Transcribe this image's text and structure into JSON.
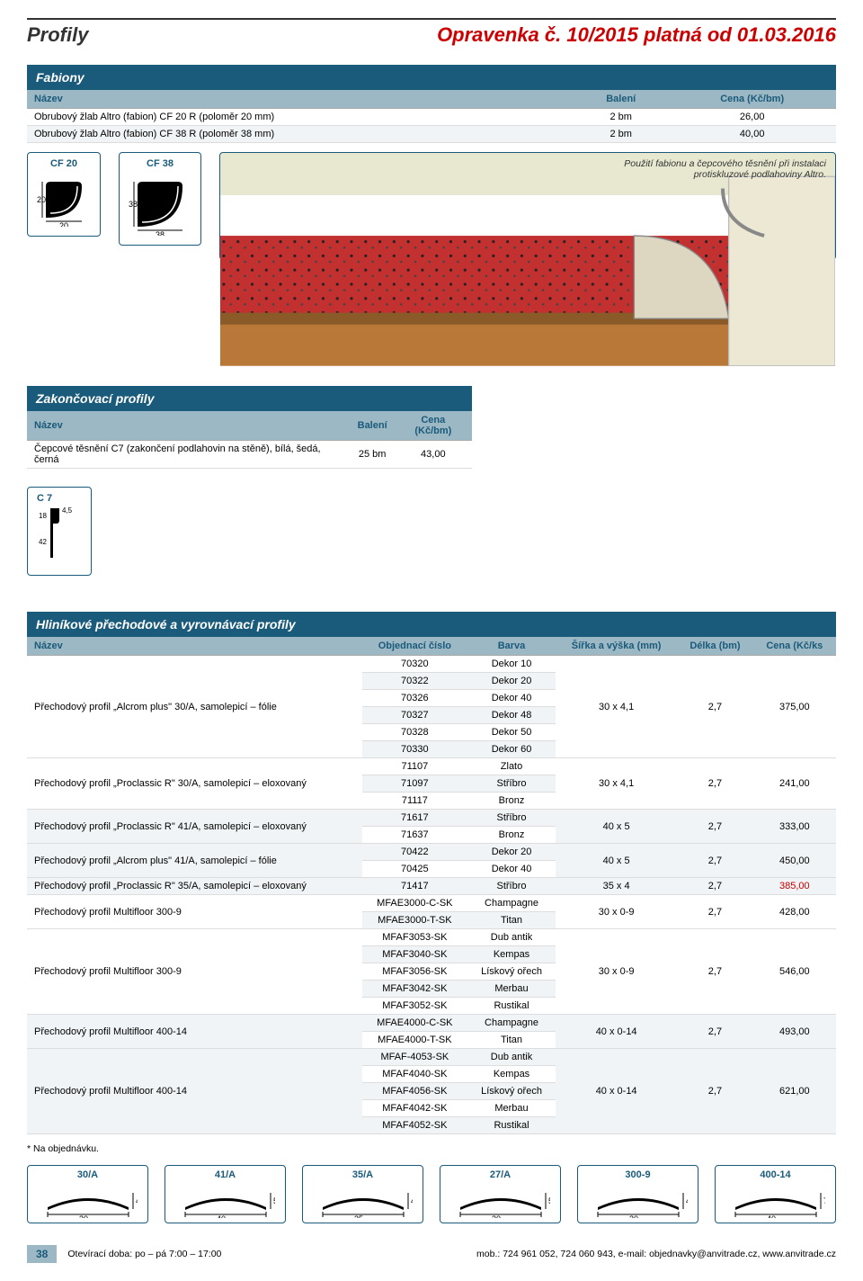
{
  "header": {
    "left": "Profily",
    "right": "Opravenka č. 10/2015  platná od 01.03.2016"
  },
  "fabiony": {
    "title": "Fabiony",
    "columns": [
      "Název",
      "Balení",
      "Cena (Kč/bm)"
    ],
    "rows": [
      [
        "Obrubový žlab Altro (fabion) CF 20 R (poloměr 20 mm)",
        "2 bm",
        "26,00"
      ],
      [
        "Obrubový žlab Altro (fabion) CF 38 R (poloměr 38 mm)",
        "2 bm",
        "40,00"
      ]
    ],
    "cf20": {
      "label": "CF 20",
      "w": "20",
      "h": "20"
    },
    "cf38": {
      "label": "CF 38",
      "w": "38",
      "h": "38"
    },
    "illus_text": "Použití fabionu a čepcového těsnění při instalaci protiskluzové podlahoviny Altro."
  },
  "zakon": {
    "title": "Zakončovací profily",
    "columns": [
      "Název",
      "Balení",
      "Cena (Kč/bm)"
    ],
    "rows": [
      [
        "Čepcové těsnění C7 (zakončení podlahovin na stěně), bílá, šedá, černá",
        "25 bm",
        "43,00"
      ]
    ],
    "c7": {
      "label": "C 7",
      "dim1": "4,5",
      "dim2": "18",
      "dim3": "42"
    }
  },
  "hlinik": {
    "title": "Hliníkové přechodové a vyrovnávací profily",
    "columns": [
      "Název",
      "Objednací číslo",
      "Barva",
      "Šířka a výška (mm)",
      "Délka (bm)",
      "Cena (Kč/ks"
    ],
    "rows": [
      {
        "span": 6,
        "name": "Přechodový profil „Alcrom plus\" 30/A, samolepicí – fólie",
        "items": [
          [
            "70320",
            "Dekor 10"
          ],
          [
            "70322",
            "Dekor 20"
          ],
          [
            "70326",
            "Dekor 40"
          ],
          [
            "70327",
            "Dekor 48"
          ],
          [
            "70328",
            "Dekor 50"
          ],
          [
            "70330",
            "Dekor 60"
          ]
        ],
        "dim": "30 x 4,1",
        "len": "2,7",
        "price": "375,00"
      },
      {
        "span": 3,
        "name": "Přechodový profil „Proclassic R\" 30/A, samolepicí – eloxovaný",
        "items": [
          [
            "71107",
            "Zlato"
          ],
          [
            "71097",
            "Stříbro"
          ],
          [
            "71117",
            "Bronz"
          ]
        ],
        "dim": "30 x 4,1",
        "len": "2,7",
        "price": "241,00"
      },
      {
        "span": 2,
        "name": "Přechodový profil „Proclassic R\" 41/A, samolepicí – eloxovaný",
        "items": [
          [
            "71617",
            "Stříbro"
          ],
          [
            "71637",
            "Bronz"
          ]
        ],
        "dim": "40 x 5",
        "len": "2,7",
        "price": "333,00"
      },
      {
        "span": 2,
        "name": "Přechodový profil „Alcrom plus\" 41/A, samolepicí – fólie",
        "items": [
          [
            "70422",
            "Dekor 20"
          ],
          [
            "70425",
            "Dekor 40"
          ]
        ],
        "dim": "40 x 5",
        "len": "2,7",
        "price": "450,00"
      },
      {
        "span": 1,
        "name": "Přechodový profil „Proclassic R\" 35/A, samolepicí – eloxovaný",
        "items": [
          [
            "71417",
            "Stříbro"
          ]
        ],
        "dim": "35 x 4",
        "len": "2,7",
        "price": "385,00",
        "price_red": true
      },
      {
        "span": 2,
        "name": "Přechodový profil Multifloor 300-9",
        "items": [
          [
            "MFAE3000-C-SK",
            "Champagne"
          ],
          [
            "MFAE3000-T-SK",
            "Titan"
          ]
        ],
        "dim": "30 x 0-9",
        "len": "2,7",
        "price": "428,00"
      },
      {
        "span": 5,
        "name": "Přechodový profil Multifloor 300-9",
        "items": [
          [
            "MFAF3053-SK",
            "Dub antik"
          ],
          [
            "MFAF3040-SK",
            "Kempas"
          ],
          [
            "MFAF3056-SK",
            "Lískový ořech"
          ],
          [
            "MFAF3042-SK",
            "Merbau"
          ],
          [
            "MFAF3052-SK",
            "Rustikal"
          ]
        ],
        "dim": "30 x 0-9",
        "len": "2,7",
        "price": "546,00"
      },
      {
        "span": 2,
        "name": "Přechodový profil Multifloor 400-14",
        "items": [
          [
            "MFAE4000-C-SK",
            "Champagne"
          ],
          [
            "MFAE4000-T-SK",
            "Titan"
          ]
        ],
        "dim": "40 x 0-14",
        "len": "2,7",
        "price": "493,00"
      },
      {
        "span": 5,
        "name": "Přechodový profil Multifloor 400-14",
        "items": [
          [
            "MFAF-4053-SK",
            "Dub antik"
          ],
          [
            "MFAF4040-SK",
            "Kempas"
          ],
          [
            "MFAF4056-SK",
            "Lískový ořech"
          ],
          [
            "MFAF4042-SK",
            "Merbau"
          ],
          [
            "MFAF4052-SK",
            "Rustikal"
          ]
        ],
        "dim": "40 x 0-14",
        "len": "2,7",
        "price": "621,00"
      }
    ],
    "note": "* Na objednávku."
  },
  "bottom_profiles": [
    {
      "label": "30/A",
      "w": "30",
      "h": "4,1"
    },
    {
      "label": "41/A",
      "w": "40",
      "h": "5"
    },
    {
      "label": "35/A",
      "w": "35",
      "h": "4"
    },
    {
      "label": "27/A",
      "w": "30",
      "h": "5"
    },
    {
      "label": "300-9",
      "w": "30",
      "h": "4,5"
    },
    {
      "label": "400-14",
      "w": "40",
      "h": "7"
    }
  ],
  "footer": {
    "page": "38",
    "left": "Otevírací doba: po – pá 7:00 – 17:00",
    "right": "mob.: 724 961 052, 724 060 943, e-mail: objednavky@anvitrade.cz, www.anvitrade.cz"
  },
  "colors": {
    "brand_blue": "#1a5a7a",
    "header_red": "#c00",
    "th_bg": "#9cb8c4",
    "illus_red": "#c23030",
    "illus_wood": "#b97838"
  }
}
